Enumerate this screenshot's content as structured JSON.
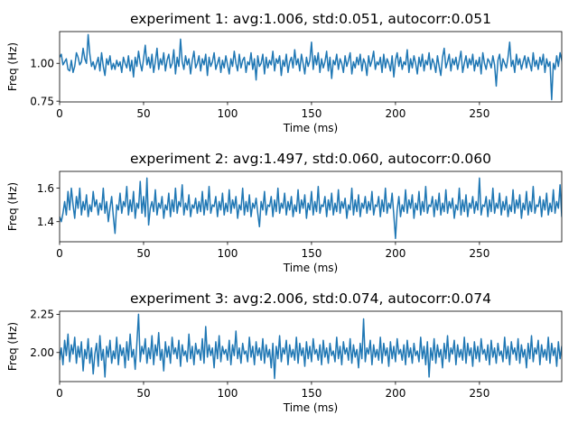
{
  "figure": {
    "background": "#ffffff",
    "series_color": "#1f77b4"
  },
  "chart_data": [
    {
      "type": "line",
      "title": "experiment 1: avg:1.006, std:0.051, autocorr:0.051",
      "xlabel": "Time (ms)",
      "ylabel": "Freq (Hz)",
      "xlim": [
        0,
        299
      ],
      "ylim": [
        0.745,
        1.21
      ],
      "xticks": [
        0,
        50,
        100,
        150,
        200,
        250
      ],
      "xtick_labels": [
        "0",
        "50",
        "100",
        "150",
        "200",
        "250"
      ],
      "yticks": [
        0.75,
        1.0
      ],
      "ytick_labels": [
        "0.75",
        "1.00"
      ],
      "grid": false,
      "series": [
        {
          "color": "#1f77b4",
          "x_start": 0,
          "x_step": 1,
          "y": [
            1.04,
            1.06,
            0.99,
            1.01,
            1.03,
            0.96,
            0.95,
            1.02,
            0.94,
            0.98,
            1.07,
            1.04,
            0.99,
            1.01,
            1.1,
            1.03,
            1.0,
            1.19,
            1.06,
            0.98,
            1.01,
            0.96,
            1.0,
            1.04,
            0.95,
            1.07,
            0.98,
            0.92,
            1.03,
            0.99,
            1.05,
            0.96,
            1.0,
            0.96,
            1.02,
            0.98,
            1.01,
            0.94,
            1.04,
            1.0,
            0.97,
            1.05,
            0.95,
            1.02,
            0.91,
            1.04,
            0.98,
            1.08,
            1.0,
            0.95,
            1.03,
            1.12,
            0.99,
            1.04,
            0.97,
            1.06,
            0.94,
            1.01,
            1.1,
            0.96,
            1.03,
            0.99,
            1.07,
            0.95,
            1.02,
            1.06,
            0.97,
            1.0,
            1.09,
            0.93,
            1.04,
            0.98,
            1.16,
            1.01,
            0.96,
            1.05,
            0.99,
            1.03,
            0.93,
            1.02,
            1.08,
            0.97,
            1.0,
            1.05,
            0.95,
            1.03,
            0.99,
            1.06,
            0.92,
            1.04,
            0.98,
            1.01,
            1.07,
            0.96,
            1.0,
            1.04,
            0.94,
            1.02,
            0.97,
            1.05,
            0.99,
            0.93,
            1.03,
            0.98,
            1.08,
            1.0,
            0.95,
            1.06,
            0.97,
            1.02,
            1.04,
            0.94,
            1.01,
            0.99,
            1.07,
            0.96,
            1.03,
            0.89,
            1.05,
            0.98,
            1.0,
            1.06,
            0.93,
            1.04,
            0.97,
            1.02,
            0.99,
            1.08,
            0.95,
            1.03,
            1.0,
            1.05,
            0.92,
            1.02,
            0.98,
            1.06,
            0.94,
            1.01,
            1.04,
            0.97,
            1.09,
            0.99,
            1.03,
            0.95,
            1.06,
            1.0,
            0.93,
            1.04,
            0.98,
            1.02,
            1.14,
            0.96,
            1.05,
            0.99,
            1.07,
            0.94,
            1.03,
            0.97,
            1.01,
            1.08,
            0.95,
            1.04,
            0.9,
            1.02,
            0.99,
            1.06,
            0.96,
            1.03,
            1.0,
            0.94,
            1.05,
            0.98,
            1.02,
            1.07,
            0.93,
            1.01,
            0.97,
            1.04,
            0.99,
            1.06,
            0.95,
            1.03,
            1.0,
            0.92,
            1.05,
            0.98,
            1.02,
            1.08,
            0.96,
            1.01,
            0.99,
            1.04,
            0.94,
            1.06,
            0.97,
            1.03,
            1.0,
            0.95,
            1.05,
            0.91,
            1.02,
            1.07,
            0.98,
            1.04,
            0.96,
            1.01,
            0.99,
            1.09,
            0.94,
            1.03,
            0.97,
            1.05,
            1.0,
            0.93,
            1.04,
            0.98,
            1.06,
            0.95,
            1.02,
            0.99,
            1.07,
            0.96,
            1.03,
            1.0,
            0.94,
            1.05,
            0.98,
            0.92,
            1.04,
            1.1,
            0.97,
            1.01,
            1.06,
            0.95,
            1.03,
            0.99,
            1.04,
            0.96,
            1.02,
            1.08,
            0.94,
            1.0,
            1.05,
            0.97,
            1.03,
            0.99,
            1.06,
            0.95,
            1.02,
            0.98,
            1.04,
            0.93,
            1.07,
            1.0,
            0.96,
            1.03,
            1.01,
            0.97,
            1.05,
            0.99,
            0.85,
            1.02,
            1.06,
            0.95,
            1.03,
            1.0,
            0.97,
            1.04,
            1.14,
            0.98,
            1.02,
            0.94,
            1.06,
            0.99,
            1.03,
            0.96,
            1.01,
            1.05,
            0.97,
            1.04,
            1.0,
            0.95,
            1.07,
            0.98,
            1.02,
            0.96,
            1.04,
            0.99,
            1.06,
            0.94,
            1.03,
            0.98,
            1.01,
            0.76,
            1.0,
            0.96,
            1.05,
            0.98,
            1.07,
            1.02,
            0.95,
            1.06,
            1.0,
            0.96
          ]
        }
      ]
    },
    {
      "type": "line",
      "title": "experiment 2: avg:1.497, std:0.060, autocorr:0.060",
      "xlabel": "Time (ms)",
      "ylabel": "Freq (Hz)",
      "xlim": [
        0,
        299
      ],
      "ylim": [
        1.28,
        1.7
      ],
      "xticks": [
        0,
        50,
        100,
        150,
        200,
        250
      ],
      "xtick_labels": [
        "0",
        "50",
        "100",
        "150",
        "200",
        "250"
      ],
      "yticks": [
        1.4,
        1.6
      ],
      "ytick_labels": [
        "1.4",
        "1.6"
      ],
      "grid": false,
      "series": [
        {
          "color": "#1f77b4",
          "x_start": 0,
          "x_step": 1,
          "y": [
            1.43,
            1.4,
            1.45,
            1.52,
            1.44,
            1.58,
            1.47,
            1.6,
            1.5,
            1.42,
            1.55,
            1.48,
            1.6,
            1.44,
            1.52,
            1.47,
            1.56,
            1.43,
            1.5,
            1.46,
            1.58,
            1.49,
            1.53,
            1.44,
            1.51,
            1.47,
            1.6,
            1.45,
            1.52,
            1.4,
            1.48,
            1.55,
            1.43,
            1.33,
            1.5,
            1.47,
            1.57,
            1.45,
            1.52,
            1.49,
            1.61,
            1.44,
            1.53,
            1.46,
            1.58,
            1.42,
            1.51,
            1.48,
            1.64,
            1.45,
            1.55,
            1.43,
            1.66,
            1.38,
            1.48,
            1.52,
            1.46,
            1.59,
            1.44,
            1.51,
            1.48,
            1.55,
            1.42,
            1.5,
            1.47,
            1.57,
            1.43,
            1.53,
            1.46,
            1.6,
            1.45,
            1.52,
            1.49,
            1.62,
            1.44,
            1.51,
            1.47,
            1.56,
            1.43,
            1.5,
            1.48,
            1.54,
            1.45,
            1.52,
            1.46,
            1.58,
            1.44,
            1.53,
            1.47,
            1.61,
            1.45,
            1.5,
            1.49,
            1.55,
            1.43,
            1.52,
            1.47,
            1.57,
            1.44,
            1.51,
            1.46,
            1.59,
            1.45,
            1.53,
            1.48,
            1.55,
            1.42,
            1.5,
            1.47,
            1.6,
            1.44,
            1.52,
            1.46,
            1.56,
            1.43,
            1.51,
            1.48,
            1.54,
            1.45,
            1.37,
            1.52,
            1.47,
            1.58,
            1.44,
            1.5,
            1.49,
            1.55,
            1.43,
            1.53,
            1.46,
            1.6,
            1.45,
            1.51,
            1.48,
            1.57,
            1.44,
            1.52,
            1.47,
            1.55,
            1.43,
            1.5,
            1.46,
            1.59,
            1.45,
            1.53,
            1.48,
            1.56,
            1.42,
            1.51,
            1.47,
            1.58,
            1.44,
            1.52,
            1.46,
            1.61,
            1.45,
            1.5,
            1.49,
            1.55,
            1.43,
            1.53,
            1.47,
            1.57,
            1.44,
            1.51,
            1.46,
            1.59,
            1.45,
            1.52,
            1.48,
            1.54,
            1.42,
            1.5,
            1.47,
            1.6,
            1.44,
            1.53,
            1.46,
            1.56,
            1.43,
            1.51,
            1.48,
            1.55,
            1.45,
            1.52,
            1.47,
            1.58,
            1.44,
            1.5,
            1.49,
            1.55,
            1.43,
            1.53,
            1.46,
            1.6,
            1.45,
            1.51,
            1.48,
            1.57,
            1.44,
            1.3,
            1.47,
            1.55,
            1.43,
            1.5,
            1.46,
            1.59,
            1.45,
            1.53,
            1.48,
            1.56,
            1.42,
            1.51,
            1.47,
            1.58,
            1.44,
            1.52,
            1.46,
            1.61,
            1.45,
            1.5,
            1.49,
            1.55,
            1.43,
            1.53,
            1.47,
            1.57,
            1.44,
            1.51,
            1.46,
            1.59,
            1.45,
            1.52,
            1.48,
            1.54,
            1.42,
            1.5,
            1.47,
            1.6,
            1.44,
            1.53,
            1.46,
            1.56,
            1.43,
            1.51,
            1.48,
            1.55,
            1.45,
            1.52,
            1.47,
            1.66,
            1.44,
            1.5,
            1.49,
            1.55,
            1.43,
            1.53,
            1.46,
            1.6,
            1.45,
            1.51,
            1.48,
            1.57,
            1.44,
            1.52,
            1.47,
            1.55,
            1.43,
            1.5,
            1.46,
            1.59,
            1.45,
            1.53,
            1.48,
            1.56,
            1.42,
            1.51,
            1.47,
            1.58,
            1.44,
            1.52,
            1.46,
            1.61,
            1.45,
            1.5,
            1.49,
            1.55,
            1.43,
            1.53,
            1.47,
            1.57,
            1.44,
            1.51,
            1.46,
            1.59,
            1.45,
            1.52,
            1.48,
            1.62,
            1.43,
            1.46,
            1.47
          ]
        }
      ]
    },
    {
      "type": "line",
      "title": "experiment 3: avg:2.006, std:0.074, autocorr:0.074",
      "xlabel": "Time (ms)",
      "ylabel": "Freq (Hz)",
      "xlim": [
        0,
        299
      ],
      "ylim": [
        1.81,
        2.27
      ],
      "xticks": [
        0,
        50,
        100,
        150,
        200,
        250
      ],
      "xtick_labels": [
        "0",
        "50",
        "100",
        "150",
        "200",
        "250"
      ],
      "yticks": [
        2.0,
        2.25
      ],
      "ytick_labels": [
        "2.00",
        "2.25"
      ],
      "grid": false,
      "series": [
        {
          "color": "#1f77b4",
          "x_start": 0,
          "x_step": 1,
          "y": [
            1.95,
            2.03,
            1.92,
            2.08,
            1.98,
            2.12,
            1.94,
            2.05,
            1.99,
            2.1,
            1.93,
            2.04,
            1.97,
            2.07,
            1.88,
            2.02,
            1.96,
            2.09,
            1.93,
            2.03,
            1.86,
            1.99,
            2.06,
            1.91,
            2.11,
            1.95,
            2.02,
            1.84,
            2.04,
            1.97,
            2.08,
            1.93,
            2.01,
            1.96,
            2.1,
            1.92,
            2.05,
            1.98,
            2.03,
            1.9,
            2.07,
            1.95,
            2.12,
            1.97,
            2.02,
            1.89,
            2.06,
            2.25,
            1.94,
            2.04,
            1.99,
            2.09,
            1.93,
            2.03,
            1.96,
            2.11,
            1.92,
            2.05,
            1.98,
            2.13,
            1.95,
            2.02,
            1.88,
            2.07,
            1.97,
            2.04,
            1.93,
            2.1,
            1.99,
            2.03,
            1.96,
            2.08,
            1.91,
            2.05,
            1.98,
            2.01,
            1.94,
            2.12,
            1.96,
            2.04,
            1.92,
            2.06,
            1.99,
            2.02,
            1.95,
            2.09,
            1.93,
            2.17,
            1.97,
            2.05,
            1.98,
            2.03,
            1.9,
            2.07,
            1.96,
            2.11,
            1.94,
            2.04,
            1.99,
            2.02,
            1.95,
            2.08,
            1.92,
            2.05,
            1.98,
            2.14,
            1.96,
            2.03,
            1.93,
            2.06,
            1.99,
            2.01,
            1.94,
            2.1,
            1.97,
            2.04,
            1.92,
            2.07,
            1.98,
            2.03,
            1.95,
            2.09,
            1.93,
            2.05,
            1.97,
            2.02,
            1.9,
            2.06,
            1.83,
            2.04,
            1.96,
            2.11,
            1.94,
            2.03,
            1.99,
            2.08,
            1.92,
            2.05,
            1.97,
            2.02,
            1.95,
            2.1,
            1.93,
            2.06,
            1.98,
            2.03,
            1.91,
            2.07,
            1.96,
            2.04,
            1.94,
            2.09,
            1.99,
            2.02,
            1.95,
            2.05,
            1.92,
            2.08,
            1.97,
            2.03,
            1.93,
            2.06,
            1.98,
            2.01,
            1.94,
            2.1,
            1.96,
            2.04,
            1.92,
            2.07,
            1.99,
            2.03,
            1.95,
            2.09,
            1.93,
            2.05,
            1.97,
            2.02,
            1.9,
            2.06,
            1.96,
            2.22,
            1.94,
            2.03,
            1.99,
            2.08,
            1.92,
            2.05,
            1.97,
            2.02,
            1.95,
            2.1,
            1.93,
            2.06,
            1.98,
            2.03,
            1.91,
            2.07,
            1.96,
            2.04,
            1.94,
            2.09,
            1.99,
            2.02,
            1.95,
            2.05,
            1.92,
            2.08,
            1.97,
            2.03,
            1.93,
            2.06,
            1.98,
            2.01,
            1.94,
            2.1,
            1.96,
            2.04,
            1.92,
            2.07,
            1.84,
            2.03,
            1.95,
            2.09,
            1.93,
            2.05,
            1.97,
            2.02,
            1.9,
            2.06,
            1.96,
            2.11,
            1.94,
            2.03,
            1.99,
            2.08,
            1.92,
            2.05,
            1.97,
            2.02,
            1.95,
            2.1,
            1.93,
            2.06,
            1.98,
            2.03,
            1.91,
            2.07,
            1.96,
            2.04,
            1.94,
            2.09,
            1.99,
            2.02,
            1.95,
            2.05,
            1.92,
            2.08,
            1.97,
            2.03,
            1.93,
            2.06,
            1.98,
            2.01,
            1.94,
            2.1,
            1.96,
            2.04,
            1.92,
            2.07,
            1.99,
            2.03,
            1.95,
            2.09,
            1.93,
            2.05,
            1.97,
            2.02,
            1.9,
            2.06,
            1.96,
            2.11,
            1.94,
            2.03,
            1.99,
            2.08,
            1.92,
            2.05,
            1.97,
            2.02,
            1.95,
            2.1,
            1.93,
            2.06,
            1.98,
            2.03,
            1.91,
            2.07,
            1.96,
            2.04,
            1.94,
            2.09,
            1.99,
            2.02,
            1.95,
            2.05,
            1.92,
            2.08,
            1.97,
            1.95,
            2.03
          ]
        }
      ]
    }
  ]
}
